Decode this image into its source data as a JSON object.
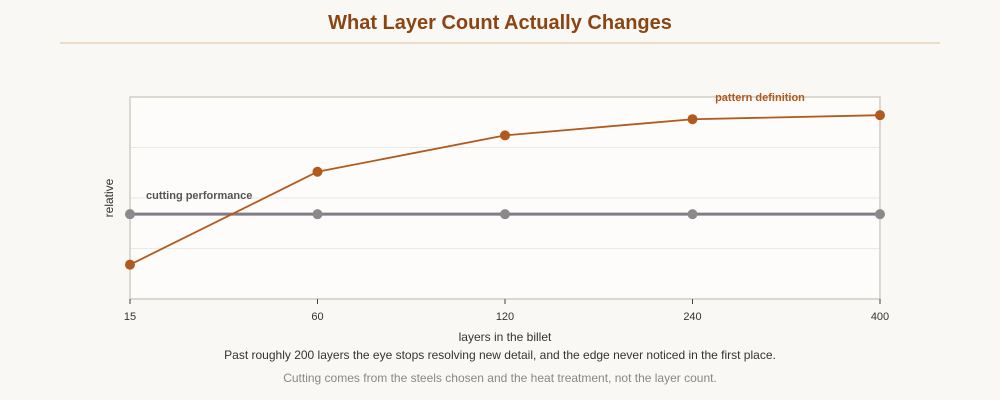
{
  "title": "What Layer Count Actually Changes",
  "captions": {
    "main": "Past roughly 200 layers the eye stops resolving new detail, and the edge never noticed in the first place.",
    "sub": "Cutting comes from the steels chosen and the heat treatment, not the layer count."
  },
  "colors": {
    "pattern": "#b05a1e",
    "cutting": "#807c86",
    "cutting_points": "#8a8a8a",
    "title": "#8b4513",
    "plot_bg": "#fdfcfa",
    "frame": "#cfcdc4",
    "grid": "#ece9e4"
  },
  "chart_data": {
    "type": "line",
    "categories": [
      "15",
      "60",
      "120",
      "240",
      "400"
    ],
    "xlabel": "layers in the billet",
    "ylabel": "relative",
    "ylim": [
      0,
      1
    ],
    "grid": true,
    "series": [
      {
        "name": "pattern definition",
        "values": [
          0.17,
          0.63,
          0.81,
          0.89,
          0.91
        ]
      },
      {
        "name": "cutting performance",
        "values": [
          0.42,
          0.42,
          0.42,
          0.42,
          0.42
        ]
      }
    ]
  }
}
